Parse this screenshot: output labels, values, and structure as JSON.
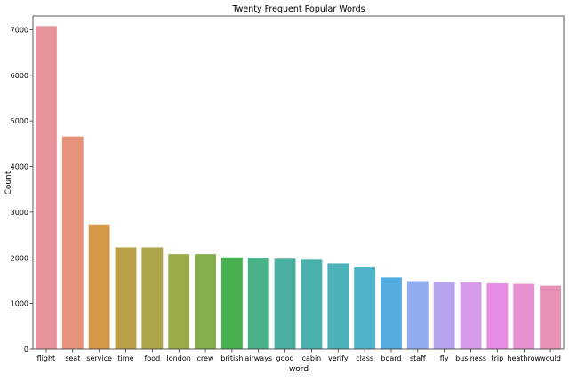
{
  "chart_data": {
    "type": "bar",
    "title": "Twenty Frequent Popular Words",
    "xlabel": "word",
    "ylabel": "Count",
    "ylim": [
      0,
      7300
    ],
    "yticks": [
      0,
      1000,
      2000,
      3000,
      4000,
      5000,
      6000,
      7000
    ],
    "grid": false,
    "legend": "none",
    "categories": [
      "flight",
      "seat",
      "service",
      "time",
      "food",
      "london",
      "crew",
      "british",
      "airways",
      "good",
      "cabin",
      "verify",
      "class",
      "board",
      "staff",
      "fly",
      "business",
      "trip",
      "heathrow",
      "would"
    ],
    "values": [
      7080,
      4660,
      2730,
      2230,
      2230,
      2080,
      2080,
      2010,
      2000,
      1980,
      1960,
      1880,
      1790,
      1570,
      1490,
      1470,
      1460,
      1440,
      1430,
      1390
    ],
    "colors": [
      "#e8939c",
      "#e5937b",
      "#d59848",
      "#bb9f49",
      "#aea64b",
      "#9cab49",
      "#83ae49",
      "#48b04f",
      "#4ab288",
      "#4aafa0",
      "#49b0ac",
      "#4cb1b8",
      "#4fb2c6",
      "#55ace0",
      "#92aded",
      "#b8a3ee",
      "#d59be9",
      "#e78de6",
      "#e991d0",
      "#e891b7"
    ]
  }
}
